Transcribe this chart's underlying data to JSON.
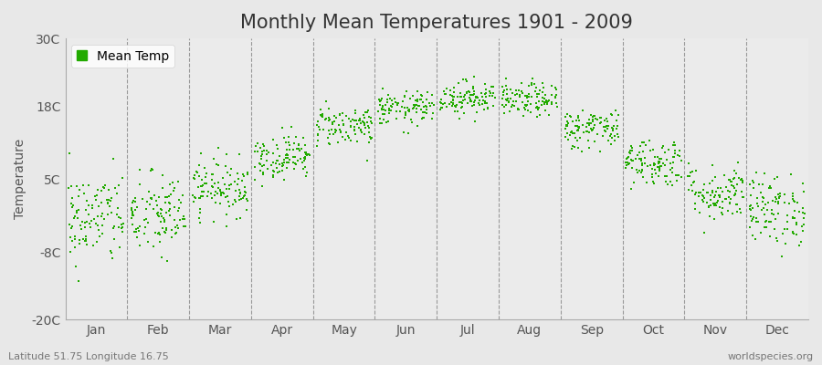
{
  "title": "Monthly Mean Temperatures 1901 - 2009",
  "ylabel": "Temperature",
  "yticks": [
    -20,
    -8,
    5,
    18,
    30
  ],
  "ytick_labels": [
    "-20C",
    "-8C",
    "5C",
    "18C",
    "30C"
  ],
  "ylim": [
    -20,
    30
  ],
  "months": [
    "Jan",
    "Feb",
    "Mar",
    "Apr",
    "May",
    "Jun",
    "Jul",
    "Aug",
    "Sep",
    "Oct",
    "Nov",
    "Dec"
  ],
  "month_means": [
    -2.0,
    -1.5,
    3.5,
    9.0,
    14.5,
    17.5,
    19.5,
    19.0,
    14.0,
    8.0,
    2.5,
    -0.5
  ],
  "month_stds": [
    4.2,
    3.8,
    2.5,
    2.0,
    1.8,
    1.5,
    1.5,
    1.5,
    1.8,
    2.2,
    2.5,
    3.2
  ],
  "n_years": 109,
  "dot_color": "#22aa00",
  "dot_size": 3,
  "background_color": "#e8e8e8",
  "plot_bg_color": "#ebebeb",
  "title_fontsize": 15,
  "axis_fontsize": 10,
  "tick_fontsize": 10,
  "legend_label": "Mean Temp",
  "bottom_left_text": "Latitude 51.75 Longitude 16.75",
  "bottom_right_text": "worldspecies.org",
  "seed": 42
}
